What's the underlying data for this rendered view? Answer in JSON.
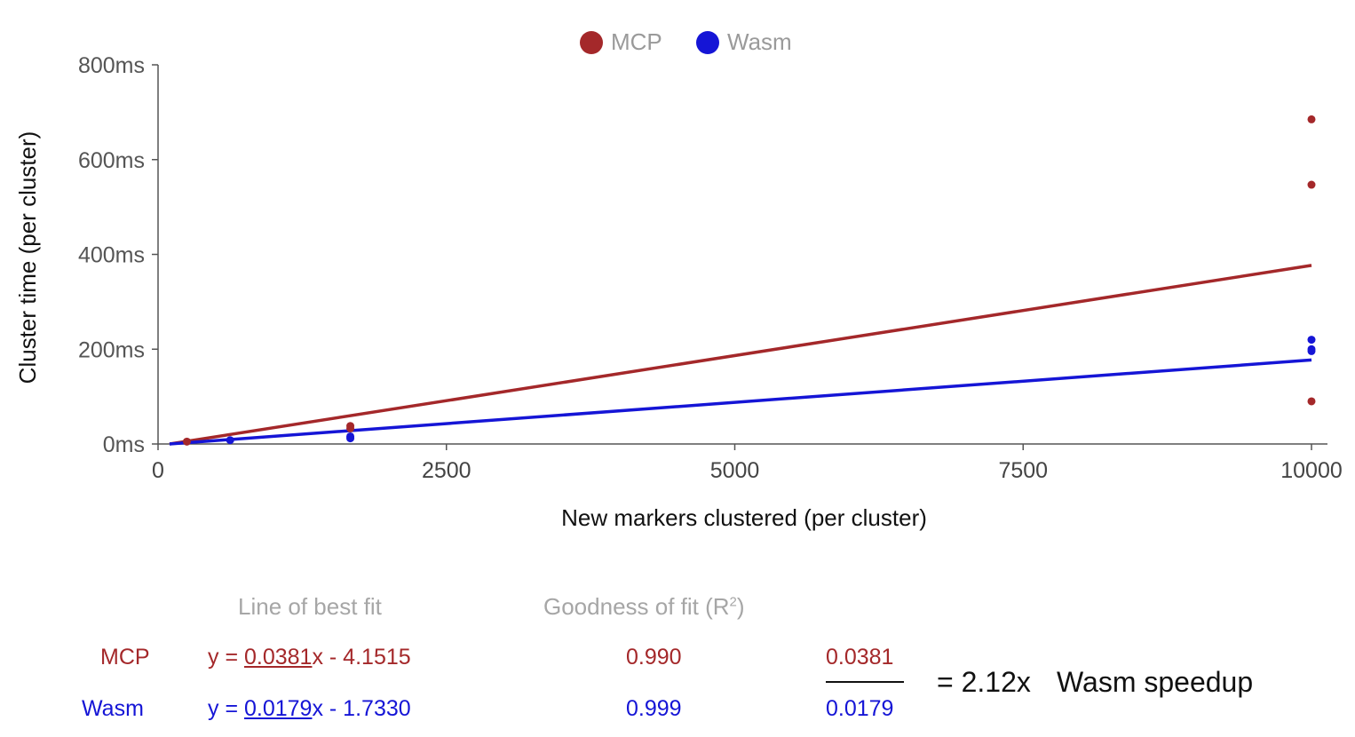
{
  "chart_data": {
    "type": "scatter",
    "xlabel": "New markers clustered (per cluster)",
    "ylabel": "Cluster time (per cluster)",
    "xlim": [
      0,
      10000
    ],
    "ylim": [
      0,
      800
    ],
    "x_ticks": [
      "0",
      "2500",
      "5000",
      "7500",
      "10000"
    ],
    "y_ticks": [
      "0ms",
      "200ms",
      "400ms",
      "600ms",
      "800ms"
    ],
    "x_tick_values": [
      0,
      2500,
      5000,
      7500,
      10000
    ],
    "y_tick_values": [
      0,
      200,
      400,
      600,
      800
    ],
    "legend": {
      "position": "top-center"
    },
    "series": [
      {
        "name": "MCP",
        "color": "#a4282a",
        "points": [
          [
            250,
            5
          ],
          [
            1667,
            38
          ],
          [
            1667,
            33
          ],
          [
            10000,
            685
          ],
          [
            10000,
            547
          ],
          [
            10000,
            90
          ]
        ],
        "fit": {
          "slope": 0.0381,
          "intercept": -4.1515,
          "x_range": [
            100,
            10000
          ]
        }
      },
      {
        "name": "Wasm",
        "color": "#1515d6",
        "points": [
          [
            625,
            8
          ],
          [
            1667,
            16
          ],
          [
            1667,
            12
          ],
          [
            10000,
            220
          ],
          [
            10000,
            200
          ],
          [
            10000,
            196
          ]
        ],
        "fit": {
          "slope": 0.0179,
          "intercept": -1.733,
          "x_range": [
            100,
            10000
          ]
        }
      }
    ]
  },
  "stats": {
    "header_fit": "Line of best fit",
    "header_r2": "Goodness of fit (R",
    "header_r2_sup": "2",
    "header_r2_close": ")",
    "mcp": {
      "label": "MCP",
      "eq_prefix": "y = ",
      "slope": "0.0381",
      "eq_suffix": "x - 4.1515",
      "r2": "0.990"
    },
    "wasm": {
      "label": "Wasm",
      "eq_prefix": "y = ",
      "slope": "0.0179",
      "eq_suffix": "x - 1.7330",
      "r2": "0.999"
    },
    "ratio_numerator": "0.0381",
    "ratio_denominator": "0.0179",
    "result": "= 2.12x",
    "result_label": "Wasm speedup"
  }
}
